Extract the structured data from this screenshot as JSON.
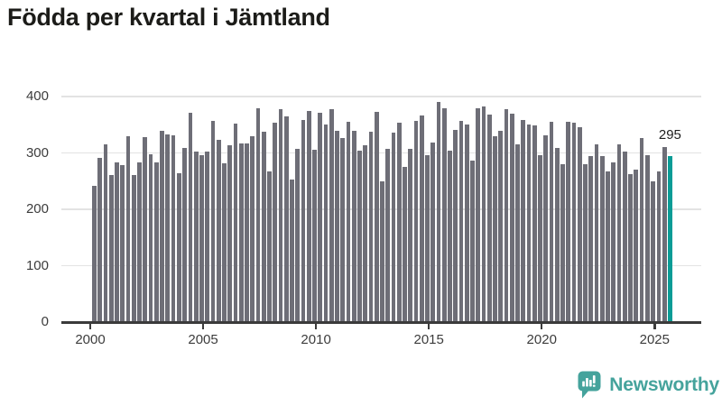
{
  "header": {
    "title": "Födda per kvartal i Jämtland"
  },
  "colors": {
    "bar": "#6e6e77",
    "highlight": "#0a9c96",
    "axis": "#3b3b3b",
    "grid": "#e3e3e3",
    "axis_text": "#3c3c3c",
    "title_text": "#1c1c19",
    "brand": "#45a39c",
    "background": "#ffffff"
  },
  "chart_data": {
    "type": "bar",
    "title": "Födda per kvartal i Jämtland",
    "xlabel": "",
    "ylabel": "",
    "ylim": [
      0,
      400
    ],
    "y_tick_labels": [
      "0",
      "100",
      "200",
      "300",
      "400"
    ],
    "y_ticks": [
      0,
      100,
      200,
      300,
      400
    ],
    "x_tick_labels": [
      "2000",
      "2005",
      "2010",
      "2015",
      "2020",
      "2025"
    ],
    "grid": "horizontal",
    "legend": "none",
    "categories": [
      "2000 Q1",
      "2000 Q2",
      "2000 Q3",
      "2000 Q4",
      "2001 Q1",
      "2001 Q2",
      "2001 Q3",
      "2001 Q4",
      "2002 Q1",
      "2002 Q2",
      "2002 Q3",
      "2002 Q4",
      "2003 Q1",
      "2003 Q2",
      "2003 Q3",
      "2003 Q4",
      "2004 Q1",
      "2004 Q2",
      "2004 Q3",
      "2004 Q4",
      "2005 Q1",
      "2005 Q2",
      "2005 Q3",
      "2005 Q4",
      "2006 Q1",
      "2006 Q2",
      "2006 Q3",
      "2006 Q4",
      "2007 Q1",
      "2007 Q2",
      "2007 Q3",
      "2007 Q4",
      "2008 Q1",
      "2008 Q2",
      "2008 Q3",
      "2008 Q4",
      "2009 Q1",
      "2009 Q2",
      "2009 Q3",
      "2009 Q4",
      "2010 Q1",
      "2010 Q2",
      "2010 Q3",
      "2010 Q4",
      "2011 Q1",
      "2011 Q2",
      "2011 Q3",
      "2011 Q4",
      "2012 Q1",
      "2012 Q2",
      "2012 Q3",
      "2012 Q4",
      "2013 Q1",
      "2013 Q2",
      "2013 Q3",
      "2013 Q4",
      "2014 Q1",
      "2014 Q2",
      "2014 Q3",
      "2014 Q4",
      "2015 Q1",
      "2015 Q2",
      "2015 Q3",
      "2015 Q4",
      "2016 Q1",
      "2016 Q2",
      "2016 Q3",
      "2016 Q4",
      "2017 Q1",
      "2017 Q2",
      "2017 Q3",
      "2017 Q4",
      "2018 Q1",
      "2018 Q2",
      "2018 Q3",
      "2018 Q4",
      "2019 Q1",
      "2019 Q2",
      "2019 Q3",
      "2019 Q4",
      "2020 Q1",
      "2020 Q2",
      "2020 Q3",
      "2020 Q4",
      "2021 Q1",
      "2021 Q2",
      "2021 Q3",
      "2021 Q4",
      "2022 Q1",
      "2022 Q2",
      "2022 Q3",
      "2022 Q4",
      "2023 Q1",
      "2023 Q2",
      "2023 Q3",
      "2023 Q4",
      "2024 Q1",
      "2024 Q2",
      "2024 Q3",
      "2024 Q4",
      "2025 Q1",
      "2025 Q2",
      "2025 Q3"
    ],
    "values": [
      242,
      292,
      316,
      261,
      284,
      279,
      330,
      261,
      284,
      328,
      297,
      284,
      339,
      333,
      332,
      264,
      309,
      371,
      303,
      296,
      302,
      357,
      324,
      281,
      314,
      352,
      317,
      317,
      329,
      379,
      337,
      268,
      354,
      378,
      365,
      253,
      307,
      359,
      375,
      305,
      371,
      351,
      378,
      339,
      327,
      355,
      339,
      304,
      313,
      337,
      373,
      250,
      307,
      336,
      354,
      276,
      308,
      357,
      367,
      296,
      318,
      390,
      379,
      304,
      341,
      357,
      350,
      287,
      379,
      383,
      368,
      330,
      339,
      378,
      369,
      315,
      358,
      350,
      349,
      296,
      331,
      355,
      309,
      280,
      355,
      353,
      346,
      280,
      295,
      316,
      294,
      268,
      284,
      315,
      302,
      263,
      270,
      326,
      296,
      249,
      268,
      311,
      295
    ],
    "highlight": {
      "index": 102,
      "category": "2025 Q3",
      "value": 295,
      "label": "295"
    }
  },
  "branding": {
    "name": "Newsworthy",
    "icon": "newsworthy-chart-bubble-icon"
  }
}
